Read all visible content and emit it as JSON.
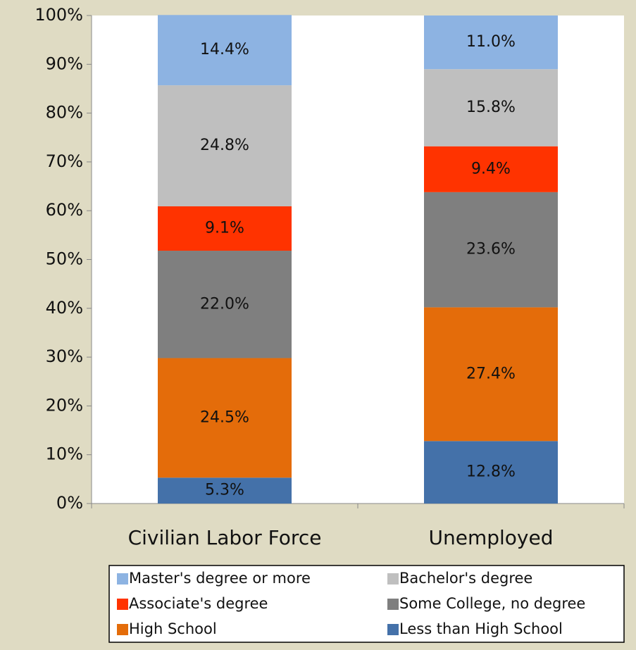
{
  "chart_data": {
    "type": "stacked_bar",
    "categories": [
      "Civilian Labor Force",
      "Unemployed"
    ],
    "series": [
      {
        "name": "Less than High School",
        "color": "#4471a9",
        "values": [
          5.3,
          12.8
        ],
        "value_labels": [
          "5.3%",
          "12.8%"
        ]
      },
      {
        "name": "High School",
        "color": "#e46c0a",
        "values": [
          24.5,
          27.4
        ],
        "value_labels": [
          "24.5%",
          "27.4%"
        ]
      },
      {
        "name": "Some College, no degree",
        "color": "#7f7f7f",
        "values": [
          22.0,
          23.6
        ],
        "value_labels": [
          "22.0%",
          "23.6%"
        ]
      },
      {
        "name": "Associate's degree",
        "color": "#ff3300",
        "values": [
          9.1,
          9.4
        ],
        "value_labels": [
          "9.1%",
          "9.4%"
        ]
      },
      {
        "name": "Bachelor's degree",
        "color": "#bfbfbf",
        "values": [
          24.8,
          15.8
        ],
        "value_labels": [
          "24.8%",
          "15.8%"
        ]
      },
      {
        "name": "Master's degree or more",
        "color": "#8db3e2",
        "values": [
          14.4,
          11.0
        ],
        "value_labels": [
          "14.4%",
          "11.0%"
        ]
      }
    ],
    "ylim": [
      0,
      100
    ],
    "yticks": [
      {
        "value": 0,
        "label": "0%"
      },
      {
        "value": 10,
        "label": "10%"
      },
      {
        "value": 20,
        "label": "20%"
      },
      {
        "value": 30,
        "label": "30%"
      },
      {
        "value": 40,
        "label": "40%"
      },
      {
        "value": 50,
        "label": "50%"
      },
      {
        "value": 60,
        "label": "60%"
      },
      {
        "value": 70,
        "label": "70%"
      },
      {
        "value": 80,
        "label": "80%"
      },
      {
        "value": 90,
        "label": "90%"
      },
      {
        "value": 100,
        "label": "100%"
      }
    ],
    "legend": "bottom"
  }
}
